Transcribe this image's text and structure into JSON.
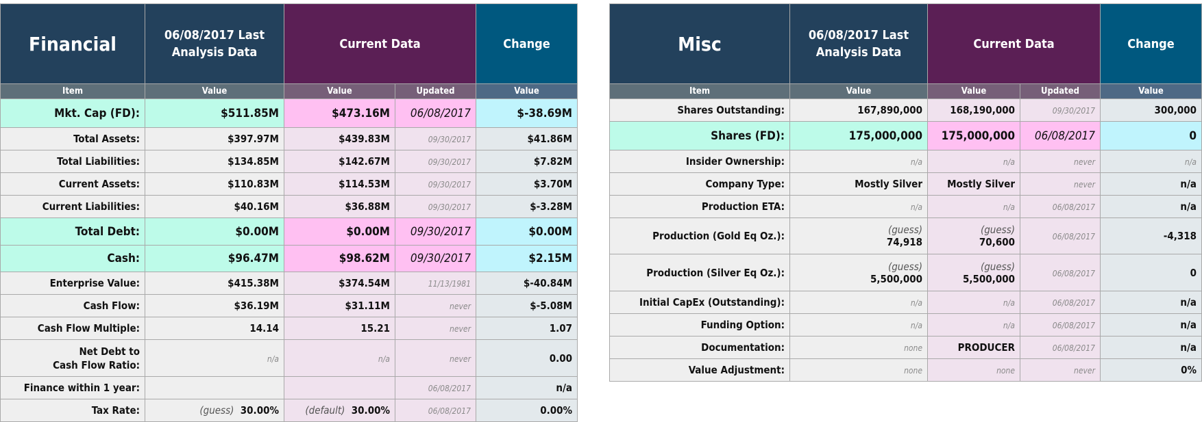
{
  "colors": {
    "header_dark": "#23415c",
    "header_purple": "#5b1f55",
    "header_blue": "#00587f",
    "highlight_item": "#bdfbe9",
    "highlight_current": "#ffc0f2",
    "highlight_change": "#c0f4fd"
  },
  "financial": {
    "title": "Financial",
    "last_header": "06/08/2017 Last Analysis Data",
    "current_header": "Current Data",
    "change_header": "Change",
    "subheaders": [
      "Item",
      "Value",
      "Value",
      "Updated",
      "Value"
    ],
    "rows": [
      {
        "hl": true,
        "cells": [
          {
            "t": "Mkt. Cap (FD):"
          },
          {
            "t": "$511.85M"
          },
          {
            "t": "$473.16M"
          },
          {
            "t": "06/08/2017"
          },
          {
            "t": "$-38.69M"
          }
        ]
      },
      {
        "cells": [
          {
            "t": "Total Assets:"
          },
          {
            "t": "$397.97M"
          },
          {
            "t": "$439.83M"
          },
          {
            "t": "09/30/2017",
            "m": true
          },
          {
            "t": "$41.86M"
          }
        ]
      },
      {
        "cells": [
          {
            "t": "Total Liabilities:"
          },
          {
            "t": "$134.85M"
          },
          {
            "t": "$142.67M"
          },
          {
            "t": "09/30/2017",
            "m": true
          },
          {
            "t": "$7.82M"
          }
        ]
      },
      {
        "cells": [
          {
            "t": "Current Assets:"
          },
          {
            "t": "$110.83M"
          },
          {
            "t": "$114.53M"
          },
          {
            "t": "09/30/2017",
            "m": true
          },
          {
            "t": "$3.70M"
          }
        ]
      },
      {
        "cells": [
          {
            "t": "Current Liabilities:"
          },
          {
            "t": "$40.16M"
          },
          {
            "t": "$36.88M"
          },
          {
            "t": "09/30/2017",
            "m": true
          },
          {
            "t": "$-3.28M"
          }
        ]
      },
      {
        "hl": true,
        "h": 40,
        "cells": [
          {
            "t": "Total Debt:"
          },
          {
            "t": "$0.00M"
          },
          {
            "t": "$0.00M"
          },
          {
            "t": "09/30/2017"
          },
          {
            "t": "$0.00M"
          }
        ]
      },
      {
        "hl": true,
        "h": 39,
        "cells": [
          {
            "t": "Cash:"
          },
          {
            "t": "$96.47M"
          },
          {
            "t": "$98.62M"
          },
          {
            "t": "09/30/2017"
          },
          {
            "t": "$2.15M"
          }
        ]
      },
      {
        "cells": [
          {
            "t": "Enterprise Value:"
          },
          {
            "t": "$415.38M"
          },
          {
            "t": "$374.54M"
          },
          {
            "t": "11/13/1981",
            "m": true
          },
          {
            "t": "$-40.84M"
          }
        ]
      },
      {
        "cells": [
          {
            "t": "Cash Flow:"
          },
          {
            "t": "$36.19M"
          },
          {
            "t": "$31.11M"
          },
          {
            "t": "never",
            "m": true
          },
          {
            "t": "$-5.08M"
          }
        ]
      },
      {
        "cells": [
          {
            "t": "Cash Flow Multiple:"
          },
          {
            "t": "14.14"
          },
          {
            "t": "15.21"
          },
          {
            "t": "never",
            "m": true
          },
          {
            "t": "1.07"
          }
        ]
      },
      {
        "h": 54,
        "cells": [
          {
            "t": "Net Debt to",
            "t2": "Cash Flow Ratio:"
          },
          {
            "t": "n/a",
            "m": true
          },
          {
            "t": "n/a",
            "m": true
          },
          {
            "t": "never",
            "m": true
          },
          {
            "t": "0.00"
          }
        ]
      },
      {
        "cells": [
          {
            "t": "Finance within 1 year:"
          },
          {
            "t": ""
          },
          {
            "t": ""
          },
          {
            "t": "06/08/2017",
            "m": true
          },
          {
            "t": "n/a"
          }
        ]
      },
      {
        "cells": [
          {
            "t": "Tax Rate:"
          },
          {
            "p": "(guess)",
            "t": "30.00%"
          },
          {
            "p": "(default)",
            "t": "30.00%"
          },
          {
            "t": "06/08/2017",
            "m": true
          },
          {
            "t": "0.00%"
          }
        ]
      }
    ]
  },
  "misc": {
    "title": "Misc",
    "last_header": "06/08/2017 Last Analysis Data",
    "current_header": "Current Data",
    "change_header": "Change",
    "subheaders": [
      "Item",
      "Value",
      "Value",
      "Updated",
      "Value"
    ],
    "rows": [
      {
        "cells": [
          {
            "t": "Shares Outstanding:"
          },
          {
            "t": "167,890,000"
          },
          {
            "t": "168,190,000"
          },
          {
            "t": "09/30/2017",
            "m": true
          },
          {
            "t": "300,000"
          }
        ]
      },
      {
        "hl": true,
        "cells": [
          {
            "t": "Shares (FD):"
          },
          {
            "t": "175,000,000"
          },
          {
            "t": "175,000,000"
          },
          {
            "t": "06/08/2017"
          },
          {
            "t": "0"
          }
        ]
      },
      {
        "cells": [
          {
            "t": "Insider Ownership:"
          },
          {
            "t": "n/a",
            "m": true
          },
          {
            "t": "n/a",
            "m": true
          },
          {
            "t": "never",
            "m": true
          },
          {
            "t": "n/a",
            "m": true
          }
        ]
      },
      {
        "cells": [
          {
            "t": "Company Type:"
          },
          {
            "t": "Mostly Silver"
          },
          {
            "t": "Mostly Silver"
          },
          {
            "t": "never",
            "m": true
          },
          {
            "t": "n/a"
          }
        ]
      },
      {
        "cells": [
          {
            "t": "Production ETA:"
          },
          {
            "t": "n/a",
            "m": true
          },
          {
            "t": "n/a",
            "m": true
          },
          {
            "t": "06/08/2017",
            "m": true
          },
          {
            "t": "n/a"
          }
        ]
      },
      {
        "h": 53,
        "cells": [
          {
            "t": "Production (Gold Eq Oz.):"
          },
          {
            "p": "(guess)",
            "t": "74,918",
            "br": true
          },
          {
            "p": "(guess)",
            "t": "70,600",
            "br": true
          },
          {
            "t": "06/08/2017",
            "m": true
          },
          {
            "t": "-4,318"
          }
        ]
      },
      {
        "h": 54,
        "cells": [
          {
            "t": "Production (Silver Eq Oz.):"
          },
          {
            "p": "(guess)",
            "t": "5,500,000",
            "br": true
          },
          {
            "p": "(guess)",
            "t": "5,500,000",
            "br": true
          },
          {
            "t": "06/08/2017",
            "m": true
          },
          {
            "t": "0"
          }
        ]
      },
      {
        "cells": [
          {
            "t": "Initial CapEx (Outstanding):"
          },
          {
            "t": "n/a",
            "m": true
          },
          {
            "t": "n/a",
            "m": true
          },
          {
            "t": "06/08/2017",
            "m": true
          },
          {
            "t": "n/a"
          }
        ]
      },
      {
        "cells": [
          {
            "t": "Funding Option:"
          },
          {
            "t": "n/a",
            "m": true
          },
          {
            "t": "n/a",
            "m": true
          },
          {
            "t": "06/08/2017",
            "m": true
          },
          {
            "t": "n/a"
          }
        ]
      },
      {
        "cells": [
          {
            "t": "Documentation:"
          },
          {
            "t": "none",
            "m": true
          },
          {
            "t": "PRODUCER"
          },
          {
            "t": "06/08/2017",
            "m": true
          },
          {
            "t": "n/a"
          }
        ]
      },
      {
        "cells": [
          {
            "t": "Value Adjustment:"
          },
          {
            "t": "none",
            "m": true
          },
          {
            "t": "none",
            "m": true
          },
          {
            "t": "never",
            "m": true
          },
          {
            "t": "0%"
          }
        ]
      }
    ]
  }
}
